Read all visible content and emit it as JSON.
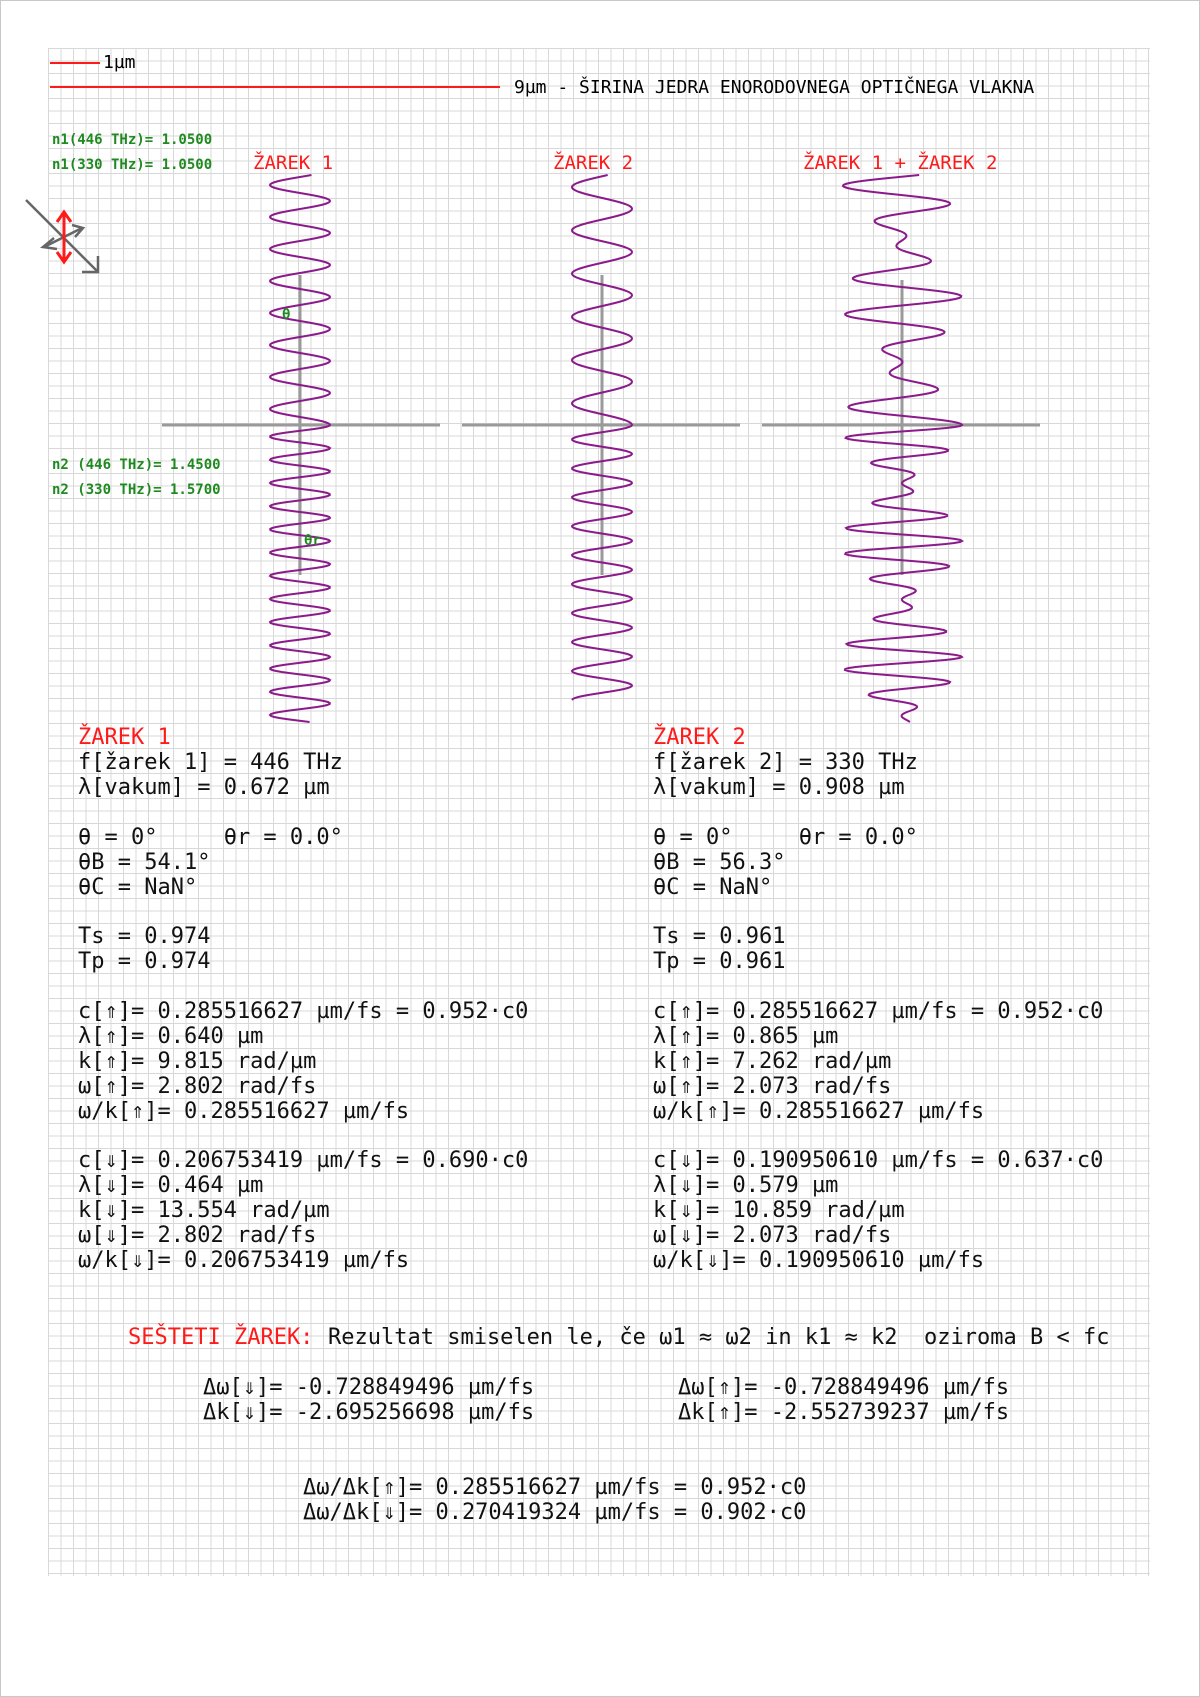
{
  "scale": {
    "short_label": "1µm",
    "long_label": "9µm - ŠIRINA JEDRA ENORODOVNEGA OPTIČNEGA VLAKNA"
  },
  "indices": {
    "n1_a": "n1(446 THz)= 1.0500",
    "n1_b": "n1(330 THz)= 1.0500",
    "n2_a": "n2 (446 THz)= 1.4500",
    "n2_b": "n2 (330 THz)= 1.5700"
  },
  "angles": {
    "theta": "θ",
    "theta_r": "θr"
  },
  "beam_titles": {
    "beam1": "ŽAREK 1",
    "beam2": "ŽAREK 2",
    "beam_sum": "ŽAREK 1 + ŽAREK 2"
  },
  "beam1": {
    "title": "ŽAREK 1",
    "lines": [
      "f[žarek 1] = 446 THz",
      "λ[vakum] = 0.672 µm",
      "",
      "θ = 0°     θr = 0.0°",
      "θB = 54.1°",
      "θC = NaN°",
      "",
      "Ts = 0.974",
      "Tp = 0.974",
      "",
      "c[⇑]= 0.285516627 µm/fs = 0.952·c0",
      "λ[⇑]= 0.640 µm",
      "k[⇑]= 9.815 rad/µm",
      "ω[⇑]= 2.802 rad/fs",
      "ω/k[⇑]= 0.285516627 µm/fs",
      "",
      "c[⇓]= 0.206753419 µm/fs = 0.690·c0",
      "λ[⇓]= 0.464 µm",
      "k[⇓]= 13.554 rad/µm",
      "ω[⇓]= 2.802 rad/fs",
      "ω/k[⇓]= 0.206753419 µm/fs"
    ]
  },
  "beam2": {
    "title": "ŽAREK 2",
    "lines": [
      "f[žarek 2] = 330 THz",
      "λ[vakum] = 0.908 µm",
      "",
      "θ = 0°     θr = 0.0°",
      "θB = 56.3°",
      "θC = NaN°",
      "",
      "Ts = 0.961",
      "Tp = 0.961",
      "",
      "c[⇑]= 0.285516627 µm/fs = 0.952·c0",
      "λ[⇑]= 0.865 µm",
      "k[⇑]= 7.262 rad/µm",
      "ω[⇑]= 2.073 rad/fs",
      "ω/k[⇑]= 0.285516627 µm/fs",
      "",
      "c[⇓]= 0.190950610 µm/fs = 0.637·c0",
      "λ[⇓]= 0.579 µm",
      "k[⇓]= 10.859 rad/µm",
      "ω[⇓]= 2.073 rad/fs",
      "ω/k[⇓]= 0.190950610 µm/fs"
    ]
  },
  "sum": {
    "label": "SEŠTETI ŽAREK:",
    "note": "Rezultat smiselen le, če ω1 ≈ ω2 in k1 ≈ k2  oziroma B < fc",
    "dw_down": "Δω[⇓]= -0.728849496 µm/fs",
    "dk_down": "Δk[⇓]= -2.695256698 µm/fs",
    "dw_up": "Δω[⇑]= -0.728849496 µm/fs",
    "dk_up": "Δk[⇑]= -2.552739237 µm/fs",
    "group_up": "Δω/Δk[⇑]= 0.285516627 µm/fs = 0.952·c0",
    "group_down": "Δω/Δk[⇓]= 0.270419324 µm/fs = 0.902·c0"
  },
  "colors": {
    "wave": "#8b1a8b",
    "accent_red": "#ff1a1a",
    "index_green": "#1f8a1f",
    "axis_gray": "#9a9a9a",
    "grid": "#b9b9b9"
  },
  "wave_data": {
    "beam1": {
      "amplitude_upper": 1,
      "wavelength_upper_um": 0.64,
      "amplitude_lower": 1,
      "wavelength_lower_um": 0.464
    },
    "beam2": {
      "amplitude_upper": 1,
      "wavelength_upper_um": 0.865,
      "amplitude_lower": 1,
      "wavelength_lower_um": 0.579
    }
  },
  "icons": {
    "polarization": "polarization-arrows-icon"
  }
}
